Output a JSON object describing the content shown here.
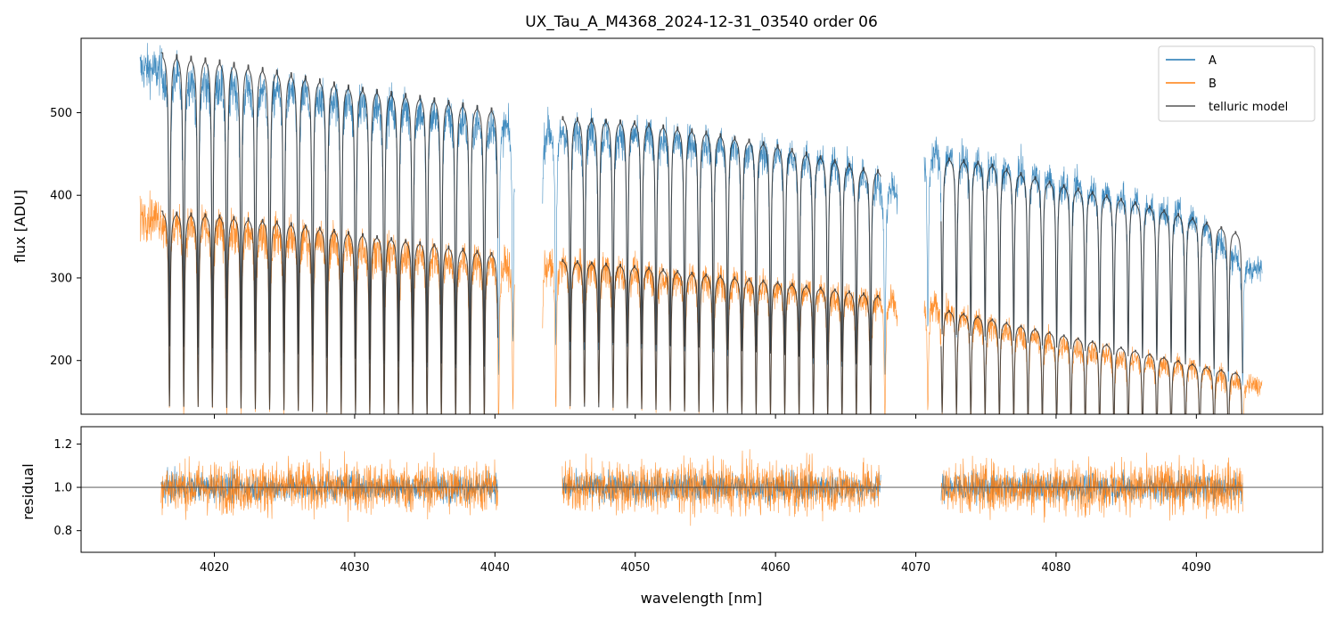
{
  "chart_data": [
    {
      "type": "line",
      "title": "UX_Tau_A_M4368_2024-12-31_03540  order 06",
      "xlabel": "",
      "ylabel": "flux [ADU]",
      "xlim": [
        4010.5,
        4099
      ],
      "ylim": [
        135,
        590
      ],
      "yticks": [
        200,
        300,
        400,
        500
      ],
      "legend_position": "top-right",
      "segments": [
        [
          4014.7,
          4041.4
        ],
        [
          4043.4,
          4068.7
        ],
        [
          4070.6,
          4094.7
        ]
      ],
      "model_segments": [
        [
          4016.2,
          4040.2
        ],
        [
          4044.8,
          4067.5
        ],
        [
          4071.8,
          4093.3
        ]
      ],
      "series": [
        {
          "name": "A",
          "color": "#1f77b4",
          "x": [
            4015,
            4020,
            4025,
            4030,
            4035,
            4040,
            4044,
            4050,
            4055,
            4060,
            4065,
            4068,
            4071,
            4075,
            4080,
            4085,
            4090,
            4094
          ],
          "values": [
            553,
            540,
            530,
            518,
            505,
            487,
            482,
            478,
            468,
            455,
            438,
            410,
            455,
            440,
            420,
            400,
            375,
            310
          ]
        },
        {
          "name": "B",
          "color": "#ff7f0e",
          "x": [
            4015,
            4020,
            4025,
            4030,
            4035,
            4040,
            4044,
            4050,
            4055,
            4060,
            4065,
            4068,
            4071,
            4075,
            4080,
            4085,
            4090,
            4094
          ],
          "values": [
            375,
            362,
            355,
            342,
            330,
            318,
            318,
            310,
            300,
            292,
            282,
            272,
            268,
            245,
            222,
            205,
            192,
            170
          ]
        },
        {
          "name": "telluric model",
          "color": "#555555",
          "x": [
            4016,
            4020,
            4025,
            4030,
            4035,
            4040,
            4045,
            4050,
            4055,
            4060,
            4065,
            4067,
            4072,
            4075,
            4080,
            4085,
            4090,
            4093
          ],
          "values_A": [
            573,
            565,
            550,
            532,
            520,
            505,
            495,
            490,
            478,
            462,
            440,
            430,
            446,
            440,
            415,
            395,
            372,
            355
          ],
          "values_B": [
            381,
            377,
            368,
            355,
            343,
            330,
            322,
            315,
            305,
            296,
            285,
            280,
            262,
            252,
            233,
            215,
            195,
            185
          ]
        }
      ]
    },
    {
      "type": "line",
      "xlabel": "wavelength [nm]",
      "ylabel": "residual",
      "xlim": [
        4010.5,
        4099
      ],
      "ylim": [
        0.7,
        1.28
      ],
      "xticks": [
        4020,
        4030,
        4040,
        4050,
        4060,
        4070,
        4080,
        4090
      ],
      "yticks": [
        0.8,
        1.0,
        1.2
      ],
      "reference_line": 1.0,
      "segments": [
        [
          4016.2,
          4040.2
        ],
        [
          4044.8,
          4067.5
        ],
        [
          4071.8,
          4093.3
        ]
      ],
      "series": [
        {
          "name": "A",
          "color": "#1f77b4",
          "mean": 1.0,
          "spread": 0.05
        },
        {
          "name": "B",
          "color": "#ff7f0e",
          "mean": 1.0,
          "spread": 0.09
        }
      ]
    }
  ]
}
